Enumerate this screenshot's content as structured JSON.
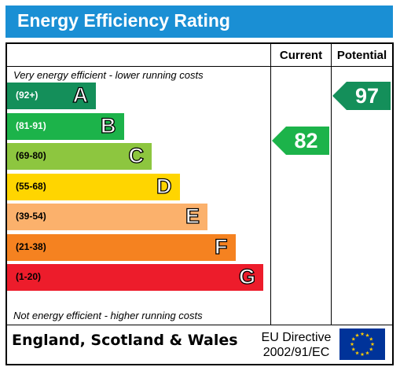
{
  "chart_data": {
    "type": "bar",
    "title": "Energy Efficiency Rating",
    "columns": [
      "Current",
      "Potential"
    ],
    "top_caption": "Very energy efficient - lower running costs",
    "bottom_caption": "Not energy efficient - higher running costs",
    "bands": [
      {
        "letter": "A",
        "range": "(92+)",
        "color": "#148f5a"
      },
      {
        "letter": "B",
        "range": "(81-91)",
        "color": "#1cb34a"
      },
      {
        "letter": "C",
        "range": "(69-80)",
        "color": "#8dc63f"
      },
      {
        "letter": "D",
        "range": "(55-68)",
        "color": "#ffd500"
      },
      {
        "letter": "E",
        "range": "(39-54)",
        "color": "#fbb16c"
      },
      {
        "letter": "F",
        "range": "(21-38)",
        "color": "#f58220"
      },
      {
        "letter": "G",
        "range": "(1-20)",
        "color": "#ed1c2b"
      }
    ],
    "current": {
      "value": "82",
      "band": "B",
      "color": "#1cb34a"
    },
    "potential": {
      "value": "97",
      "band": "A",
      "color": "#148f5a"
    }
  },
  "footer": {
    "region": "England, Scotland & Wales",
    "directive_line1": "EU Directive",
    "directive_line2": "2002/91/EC",
    "flag_icon": "eu-flag-icon"
  }
}
